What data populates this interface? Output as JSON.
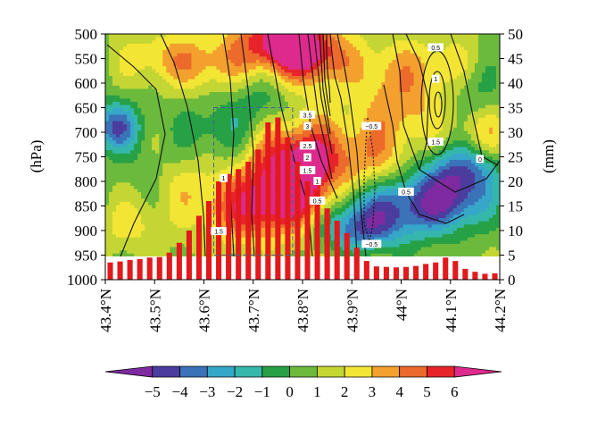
{
  "chart_data": {
    "type": "heatmap",
    "title": "",
    "x": {
      "ticks": [
        "43.4°N",
        "43.5°N",
        "43.6°N",
        "43.7°N",
        "43.8°N",
        "43.9°N",
        "44°N",
        "44.1°N",
        "44.2°N"
      ],
      "range": [
        43.4,
        44.2
      ]
    },
    "y_left": {
      "label": "(hPa)",
      "ticks": [
        "500",
        "550",
        "600",
        "650",
        "700",
        "750",
        "800",
        "850",
        "900",
        "950",
        "1000"
      ],
      "range": [
        1000,
        500
      ]
    },
    "y_right": {
      "label": "(mm)",
      "ticks": [
        "50",
        "45",
        "40",
        "35",
        "30",
        "25",
        "20",
        "15",
        "10",
        "5",
        "0"
      ],
      "range": [
        0,
        50
      ]
    },
    "colorbar": {
      "ticks": [
        "−5",
        "−4",
        "−3",
        "−2",
        "−1",
        "0",
        "1",
        "2",
        "3",
        "4",
        "5",
        "6"
      ],
      "colors": [
        "#7f2aa0",
        "#4b3c9e",
        "#3b72b8",
        "#36a6c9",
        "#35b7ab",
        "#27a146",
        "#6cba3c",
        "#c4d634",
        "#f3e534",
        "#f3a02e",
        "#ec6a2b",
        "#e8242a",
        "#dd2a8c"
      ]
    },
    "field_blobs": [
      {
        "x": 43.75,
        "p": 515,
        "v": 5.6,
        "sx": 0.06,
        "sp": 45
      },
      {
        "x": 43.82,
        "p": 545,
        "v": 4.2,
        "sx": 0.05,
        "sp": 45
      },
      {
        "x": 43.6,
        "p": 560,
        "v": 2.6,
        "sx": 0.06,
        "sp": 40
      },
      {
        "x": 43.5,
        "p": 545,
        "v": 1.6,
        "sx": 0.05,
        "sp": 35
      },
      {
        "x": 43.8,
        "p": 755,
        "v": 5.5,
        "sx": 0.07,
        "sp": 60
      },
      {
        "x": 43.77,
        "p": 830,
        "v": 4.6,
        "sx": 0.06,
        "sp": 50
      },
      {
        "x": 43.68,
        "p": 860,
        "v": 3.4,
        "sx": 0.06,
        "sp": 45
      },
      {
        "x": 43.56,
        "p": 800,
        "v": 1.6,
        "sx": 0.05,
        "sp": 50
      },
      {
        "x": 43.42,
        "p": 690,
        "v": -5.0,
        "sx": 0.035,
        "sp": 35
      },
      {
        "x": 43.5,
        "p": 780,
        "v": -0.8,
        "sx": 0.05,
        "sp": 40
      },
      {
        "x": 43.62,
        "p": 700,
        "v": -1.8,
        "sx": 0.06,
        "sp": 45
      },
      {
        "x": 43.72,
        "p": 640,
        "v": -1.6,
        "sx": 0.05,
        "sp": 45
      },
      {
        "x": 43.97,
        "p": 860,
        "v": -4.6,
        "sx": 0.08,
        "sp": 45
      },
      {
        "x": 44.1,
        "p": 830,
        "v": -5.0,
        "sx": 0.06,
        "sp": 45
      },
      {
        "x": 44.13,
        "p": 770,
        "v": -3.2,
        "sx": 0.05,
        "sp": 35
      },
      {
        "x": 43.91,
        "p": 900,
        "v": -3.0,
        "sx": 0.05,
        "sp": 30
      },
      {
        "x": 44.0,
        "p": 640,
        "v": 2.6,
        "sx": 0.06,
        "sp": 60
      },
      {
        "x": 43.95,
        "p": 560,
        "v": 1.2,
        "sx": 0.05,
        "sp": 40
      },
      {
        "x": 44.15,
        "p": 620,
        "v": -1.3,
        "sx": 0.04,
        "sp": 45
      },
      {
        "x": 44.08,
        "p": 560,
        "v": 1.6,
        "sx": 0.05,
        "sp": 40
      },
      {
        "x": 44.17,
        "p": 700,
        "v": 2.0,
        "sx": 0.04,
        "sp": 40
      },
      {
        "x": 43.95,
        "p": 750,
        "v": 2.0,
        "sx": 0.05,
        "sp": 50
      },
      {
        "x": 43.45,
        "p": 890,
        "v": 1.4,
        "sx": 0.05,
        "sp": 35
      }
    ],
    "contour_labels": [
      {
        "x": 43.81,
        "p": 665,
        "text": "3.5"
      },
      {
        "x": 43.81,
        "p": 688,
        "text": "3"
      },
      {
        "x": 43.81,
        "p": 728,
        "text": "2.5"
      },
      {
        "x": 43.81,
        "p": 752,
        "text": "2"
      },
      {
        "x": 43.81,
        "p": 778,
        "text": "1.5"
      },
      {
        "x": 43.83,
        "p": 800,
        "text": "1"
      },
      {
        "x": 43.83,
        "p": 840,
        "text": "0.5"
      },
      {
        "x": 43.64,
        "p": 794,
        "text": "1"
      },
      {
        "x": 43.63,
        "p": 902,
        "text": "1.5"
      },
      {
        "x": 43.94,
        "p": 688,
        "text": "−0.5"
      },
      {
        "x": 43.94,
        "p": 928,
        "text": "−0.5"
      },
      {
        "x": 44.07,
        "p": 528,
        "text": "0.5"
      },
      {
        "x": 44.07,
        "p": 592,
        "text": "1"
      },
      {
        "x": 44.07,
        "p": 720,
        "text": "1.5"
      },
      {
        "x": 44.01,
        "p": 822,
        "text": "0.5"
      },
      {
        "x": 44.16,
        "p": 755,
        "text": "0"
      }
    ],
    "precip_bars": [
      {
        "lat": 43.41,
        "mm": 3.5
      },
      {
        "lat": 43.43,
        "mm": 3.7
      },
      {
        "lat": 43.45,
        "mm": 4.0
      },
      {
        "lat": 43.47,
        "mm": 4.2
      },
      {
        "lat": 43.49,
        "mm": 4.5
      },
      {
        "lat": 43.51,
        "mm": 4.6
      },
      {
        "lat": 43.53,
        "mm": 5.5
      },
      {
        "lat": 43.55,
        "mm": 7.5
      },
      {
        "lat": 43.57,
        "mm": 10.0
      },
      {
        "lat": 43.59,
        "mm": 13.0
      },
      {
        "lat": 43.61,
        "mm": 16.0
      },
      {
        "lat": 43.63,
        "mm": 20.0
      },
      {
        "lat": 43.65,
        "mm": 21.5
      },
      {
        "lat": 43.67,
        "mm": 22.5
      },
      {
        "lat": 43.69,
        "mm": 24.0
      },
      {
        "lat": 43.71,
        "mm": 26.5
      },
      {
        "lat": 43.73,
        "mm": 32.0
      },
      {
        "lat": 43.75,
        "mm": 33.0
      },
      {
        "lat": 43.77,
        "mm": 29.0
      },
      {
        "lat": 43.79,
        "mm": 24.0
      },
      {
        "lat": 43.81,
        "mm": 20.0
      },
      {
        "lat": 43.83,
        "mm": 18.0
      },
      {
        "lat": 43.85,
        "mm": 14.5
      },
      {
        "lat": 43.87,
        "mm": 12.0
      },
      {
        "lat": 43.89,
        "mm": 9.5
      },
      {
        "lat": 43.91,
        "mm": 6.5
      },
      {
        "lat": 43.93,
        "mm": 3.8
      },
      {
        "lat": 43.95,
        "mm": 2.7
      },
      {
        "lat": 43.97,
        "mm": 2.6
      },
      {
        "lat": 43.99,
        "mm": 2.5
      },
      {
        "lat": 44.01,
        "mm": 2.6
      },
      {
        "lat": 44.03,
        "mm": 2.8
      },
      {
        "lat": 44.05,
        "mm": 3.2
      },
      {
        "lat": 44.07,
        "mm": 3.5
      },
      {
        "lat": 44.09,
        "mm": 4.5
      },
      {
        "lat": 44.11,
        "mm": 3.8
      },
      {
        "lat": 44.13,
        "mm": 2.2
      },
      {
        "lat": 44.15,
        "mm": 1.6
      },
      {
        "lat": 44.17,
        "mm": 1.2
      },
      {
        "lat": 44.19,
        "mm": 1.3
      }
    ],
    "dashed_box": {
      "x0": 43.62,
      "x1": 43.78,
      "p0": 650,
      "p1": 950
    }
  }
}
